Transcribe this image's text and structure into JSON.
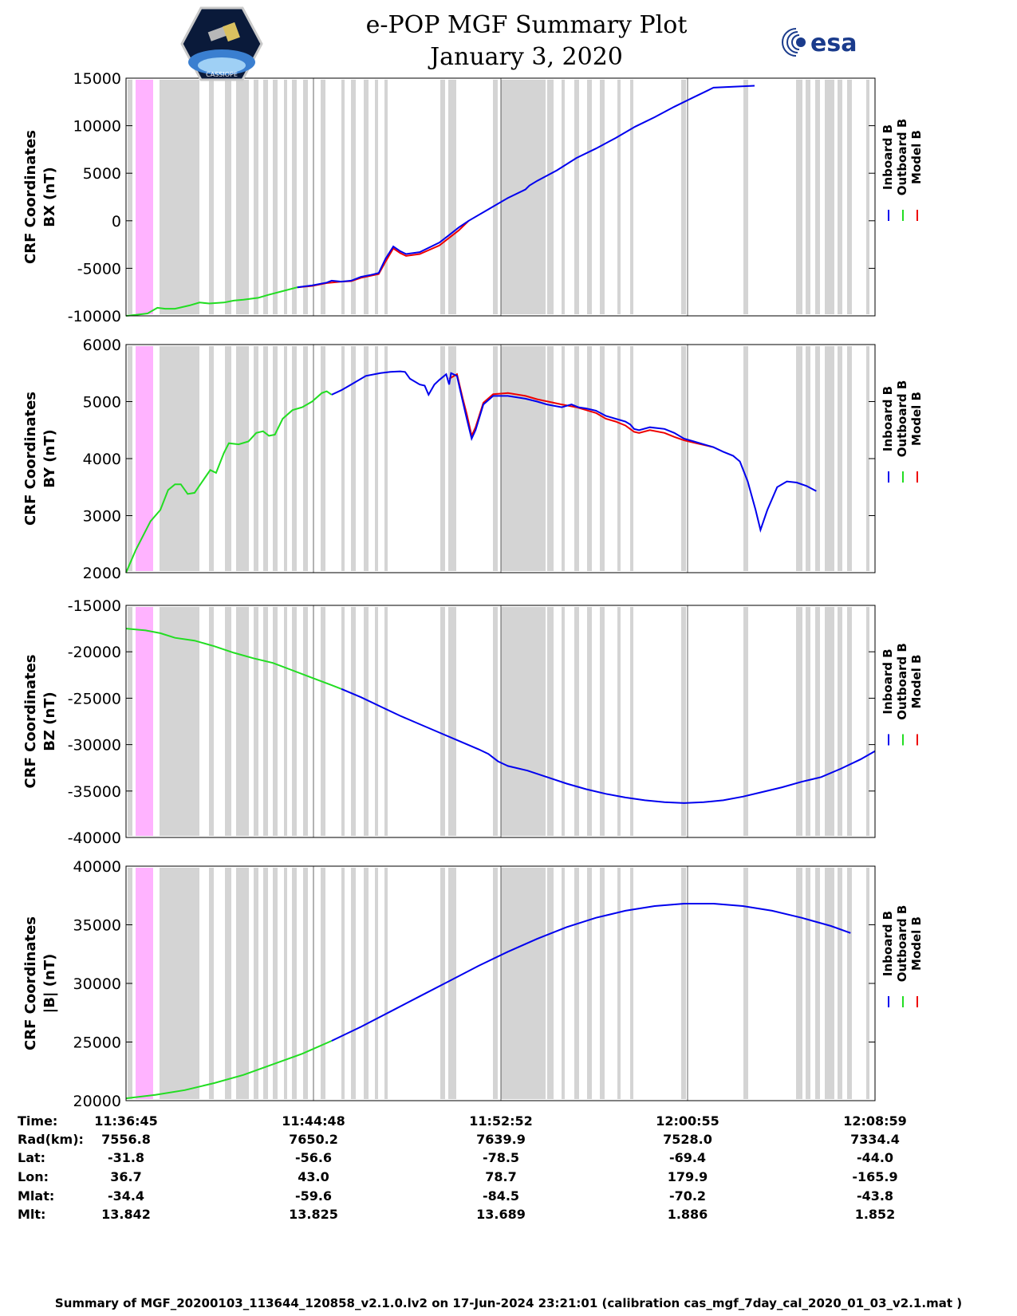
{
  "header": {
    "title_line1": "e-POP MGF Summary Plot",
    "title_line2": "January 3, 2020",
    "logo_left_text": "CASSIOPE",
    "logo_right_text": "esa"
  },
  "colors": {
    "inboard": "#0000ee",
    "outboard": "#22dd22",
    "model": "#ee0000",
    "gap_shade": "#d4d4d4",
    "pink_band": "#ffb3ff"
  },
  "legend": [
    "Inboard B",
    "Outboard B",
    "Model B"
  ],
  "chart_data": [
    {
      "type": "line",
      "ylabel": "CRF Coordinates\nBX (nT)",
      "ylim": [
        -10000,
        15000
      ],
      "yticks": [
        15000,
        10000,
        5000,
        0,
        -5000,
        -10000
      ],
      "xlim_minutes": [
        0,
        32.23
      ],
      "series": [
        {
          "name": "Outboard B",
          "points": [
            [
              0,
              -10000
            ],
            [
              1,
              -9900
            ],
            [
              2.2,
              -9750
            ],
            [
              3.2,
              -9150
            ],
            [
              4.0,
              -9250
            ],
            [
              5,
              -9250
            ],
            [
              6.5,
              -8900
            ],
            [
              7.5,
              -8600
            ],
            [
              8.5,
              -8700
            ],
            [
              10,
              -8600
            ],
            [
              11,
              -8400
            ],
            [
              12,
              -8300
            ],
            [
              13.5,
              -8100
            ],
            [
              14.5,
              -7800
            ],
            [
              16,
              -7400
            ],
            [
              17.5,
              -7000
            ]
          ]
        },
        {
          "name": "Inboard B",
          "points": [
            [
              17.5,
              -7000
            ],
            [
              19,
              -6800
            ],
            [
              20.5,
              -6500
            ],
            [
              21,
              -6300
            ],
            [
              22,
              -6400
            ],
            [
              23,
              -6300
            ],
            [
              24,
              -5900
            ],
            [
              25,
              -5700
            ],
            [
              25.8,
              -5500
            ],
            [
              26.5,
              -4000
            ],
            [
              27.3,
              -2700
            ],
            [
              28,
              -3200
            ],
            [
              28.6,
              -3500
            ],
            [
              30,
              -3300
            ],
            [
              32,
              -2300
            ],
            [
              33,
              -1500
            ],
            [
              34,
              -700
            ],
            [
              35,
              0
            ],
            [
              37,
              1200
            ],
            [
              39,
              2400
            ],
            [
              40.8,
              3300
            ],
            [
              41.2,
              3700
            ],
            [
              42,
              4200
            ],
            [
              44,
              5300
            ],
            [
              46,
              6600
            ],
            [
              48,
              7600
            ],
            [
              50,
              8700
            ],
            [
              52,
              9900
            ],
            [
              54,
              10900
            ],
            [
              56,
              12000
            ],
            [
              58,
              13000
            ],
            [
              60,
              14000
            ],
            [
              64.2,
              14200
            ]
          ]
        },
        {
          "name": "Model B",
          "points": [
            [
              17.5,
              -7000
            ],
            [
              19,
              -6850
            ],
            [
              20.5,
              -6550
            ],
            [
              22,
              -6400
            ],
            [
              23,
              -6350
            ],
            [
              24,
              -6000
            ],
            [
              25.8,
              -5600
            ],
            [
              26.5,
              -4300
            ],
            [
              27.3,
              -2900
            ],
            [
              28,
              -3400
            ],
            [
              28.6,
              -3700
            ],
            [
              30,
              -3500
            ],
            [
              32,
              -2600
            ],
            [
              34,
              -1000
            ],
            [
              35,
              0
            ]
          ]
        }
      ]
    },
    {
      "type": "line",
      "ylabel": "CRF Coordinates\nBY (nT)",
      "ylim": [
        2000,
        6000
      ],
      "yticks": [
        6000,
        5000,
        4000,
        3000,
        2000
      ],
      "series": [
        {
          "name": "Outboard B",
          "points": [
            [
              0,
              2000
            ],
            [
              1,
              2400
            ],
            [
              2.5,
              2900
            ],
            [
              3.5,
              3100
            ],
            [
              4.3,
              3450
            ],
            [
              5,
              3550
            ],
            [
              5.6,
              3550
            ],
            [
              6.3,
              3380
            ],
            [
              7,
              3400
            ],
            [
              8,
              3650
            ],
            [
              8.6,
              3800
            ],
            [
              9.2,
              3750
            ],
            [
              10,
              4100
            ],
            [
              10.5,
              4270
            ],
            [
              11.5,
              4250
            ],
            [
              12.5,
              4300
            ],
            [
              13.3,
              4450
            ],
            [
              14,
              4480
            ],
            [
              14.6,
              4400
            ],
            [
              15.2,
              4420
            ],
            [
              16,
              4700
            ],
            [
              17,
              4850
            ],
            [
              18,
              4900
            ],
            [
              19,
              5000
            ],
            [
              20,
              5150
            ],
            [
              20.5,
              5180
            ],
            [
              21,
              5120
            ]
          ]
        },
        {
          "name": "Inboard B",
          "points": [
            [
              21,
              5120
            ],
            [
              22,
              5200
            ],
            [
              23,
              5300
            ],
            [
              24.5,
              5450
            ],
            [
              26,
              5500
            ],
            [
              27,
              5520
            ],
            [
              28,
              5530
            ],
            [
              28.5,
              5520
            ],
            [
              29,
              5400
            ],
            [
              30,
              5300
            ],
            [
              30.5,
              5280
            ],
            [
              30.9,
              5120
            ],
            [
              31.5,
              5300
            ],
            [
              32,
              5380
            ],
            [
              32.7,
              5480
            ],
            [
              33,
              5300
            ],
            [
              33.2,
              5500
            ],
            [
              33.8,
              5450
            ],
            [
              34.4,
              5000
            ],
            [
              34.8,
              4700
            ],
            [
              35.3,
              4350
            ],
            [
              35.7,
              4500
            ],
            [
              36.5,
              4950
            ],
            [
              37.5,
              5100
            ],
            [
              39,
              5100
            ],
            [
              40.8,
              5050
            ],
            [
              42,
              5000
            ],
            [
              43,
              4950
            ],
            [
              44.5,
              4900
            ],
            [
              45.5,
              4950
            ],
            [
              46.2,
              4900
            ],
            [
              47,
              4880
            ],
            [
              48,
              4840
            ],
            [
              49,
              4750
            ],
            [
              50,
              4700
            ],
            [
              51,
              4650
            ],
            [
              51.5,
              4600
            ],
            [
              51.9,
              4520
            ],
            [
              52.4,
              4500
            ],
            [
              53.5,
              4550
            ],
            [
              55,
              4520
            ],
            [
              56,
              4450
            ],
            [
              57,
              4350
            ],
            [
              58,
              4300
            ],
            [
              60,
              4200
            ],
            [
              61,
              4120
            ],
            [
              62,
              4050
            ],
            [
              62.7,
              3950
            ],
            [
              63.5,
              3600
            ],
            [
              64.3,
              3100
            ],
            [
              64.8,
              2750
            ],
            [
              65.5,
              3100
            ],
            [
              66.5,
              3500
            ],
            [
              67.5,
              3600
            ],
            [
              68.5,
              3580
            ],
            [
              69.5,
              3520
            ],
            [
              70.5,
              3430
            ]
          ]
        },
        {
          "name": "Model B",
          "points": [
            [
              33,
              5400
            ],
            [
              33.8,
              5480
            ],
            [
              34.4,
              5050
            ],
            [
              34.8,
              4780
            ],
            [
              35.3,
              4400
            ],
            [
              35.7,
              4550
            ],
            [
              36.5,
              4980
            ],
            [
              37.5,
              5130
            ],
            [
              39,
              5150
            ],
            [
              40.8,
              5100
            ],
            [
              42,
              5040
            ],
            [
              44.5,
              4950
            ],
            [
              46,
              4900
            ],
            [
              48,
              4800
            ],
            [
              49,
              4700
            ],
            [
              50,
              4650
            ],
            [
              51,
              4580
            ],
            [
              51.9,
              4470
            ],
            [
              52.4,
              4450
            ],
            [
              53.5,
              4500
            ],
            [
              55,
              4450
            ],
            [
              56,
              4380
            ],
            [
              57,
              4320
            ],
            [
              58,
              4280
            ],
            [
              60,
              4200
            ]
          ]
        }
      ]
    },
    {
      "type": "line",
      "ylabel": "CRF Coordinates\nBZ (nT)",
      "ylim": [
        -40000,
        -15000
      ],
      "yticks": [
        -15000,
        -20000,
        -25000,
        -30000,
        -35000,
        -40000
      ],
      "series": [
        {
          "name": "Outboard B",
          "points": [
            [
              0,
              -17500
            ],
            [
              2,
              -17700
            ],
            [
              3.5,
              -18000
            ],
            [
              5,
              -18500
            ],
            [
              7,
              -18800
            ],
            [
              9,
              -19400
            ],
            [
              11,
              -20100
            ],
            [
              13,
              -20700
            ],
            [
              15,
              -21200
            ],
            [
              17,
              -22000
            ],
            [
              19,
              -22800
            ],
            [
              21,
              -23600
            ],
            [
              22,
              -24000
            ]
          ]
        },
        {
          "name": "Inboard B",
          "points": [
            [
              22,
              -24000
            ],
            [
              24,
              -24900
            ],
            [
              26,
              -25900
            ],
            [
              28,
              -26900
            ],
            [
              30,
              -27800
            ],
            [
              32,
              -28700
            ],
            [
              34,
              -29600
            ],
            [
              36,
              -30500
            ],
            [
              37,
              -31000
            ],
            [
              38,
              -31800
            ],
            [
              39,
              -32300
            ],
            [
              41,
              -32800
            ],
            [
              43,
              -33500
            ],
            [
              45,
              -34200
            ],
            [
              47,
              -34800
            ],
            [
              49,
              -35300
            ],
            [
              51,
              -35700
            ],
            [
              53,
              -36000
            ],
            [
              55,
              -36200
            ],
            [
              57,
              -36300
            ],
            [
              59,
              -36200
            ],
            [
              61,
              -36000
            ],
            [
              63,
              -35600
            ],
            [
              65,
              -35100
            ],
            [
              67,
              -34600
            ],
            [
              69,
              -34000
            ],
            [
              71,
              -33500
            ],
            [
              73,
              -32600
            ],
            [
              75,
              -31600
            ],
            [
              76.5,
              -30700
            ]
          ]
        }
      ]
    },
    {
      "type": "line",
      "ylabel": "CRF Coordinates\n|B| (nT)",
      "ylim": [
        20000,
        40000
      ],
      "yticks": [
        40000,
        35000,
        30000,
        25000,
        20000
      ],
      "series": [
        {
          "name": "Outboard B",
          "points": [
            [
              0,
              20200
            ],
            [
              3,
              20500
            ],
            [
              6,
              20900
            ],
            [
              9,
              21500
            ],
            [
              12,
              22200
            ],
            [
              15,
              23100
            ],
            [
              18,
              24000
            ],
            [
              21,
              25100
            ]
          ]
        },
        {
          "name": "Inboard B",
          "points": [
            [
              21,
              25100
            ],
            [
              24,
              26300
            ],
            [
              27,
              27600
            ],
            [
              30,
              28900
            ],
            [
              33,
              30200
            ],
            [
              36,
              31500
            ],
            [
              39,
              32700
            ],
            [
              42,
              33800
            ],
            [
              45,
              34800
            ],
            [
              48,
              35600
            ],
            [
              51,
              36200
            ],
            [
              54,
              36600
            ],
            [
              57,
              36800
            ],
            [
              60,
              36800
            ],
            [
              63,
              36600
            ],
            [
              66,
              36200
            ],
            [
              69,
              35600
            ],
            [
              72,
              34900
            ],
            [
              74,
              34300
            ]
          ]
        }
      ]
    }
  ],
  "x_axis": {
    "tick_labels": [
      "11:36:45",
      "11:44:48",
      "11:52:52",
      "12:00:55",
      "12:08:59"
    ]
  },
  "info_table": {
    "labels": [
      "Time:",
      "Rad(km):",
      "Lat:",
      "Lon:",
      "Mlat:",
      "Mlt:"
    ],
    "columns": [
      [
        "11:36:45",
        "7556.8",
        "-31.8",
        "36.7",
        "-34.4",
        "13.842"
      ],
      [
        "11:44:48",
        "7650.2",
        "-56.6",
        "43.0",
        "-59.6",
        "13.825"
      ],
      [
        "11:52:52",
        "7639.9",
        "-78.5",
        "78.7",
        "-84.5",
        "13.689"
      ],
      [
        "12:00:55",
        "7528.0",
        "-69.4",
        "179.9",
        "-70.2",
        "1.886"
      ],
      [
        "12:08:59",
        "7334.4",
        "-44.0",
        "-165.9",
        "-43.8",
        "1.852"
      ]
    ]
  },
  "footer": "Summary of MGF_20200103_113644_120858_v2.1.0.lv2 on 17-Jun-2024 23:21:01 (calibration cas_mgf_7day_cal_2020_01_03_v2.1.mat )"
}
